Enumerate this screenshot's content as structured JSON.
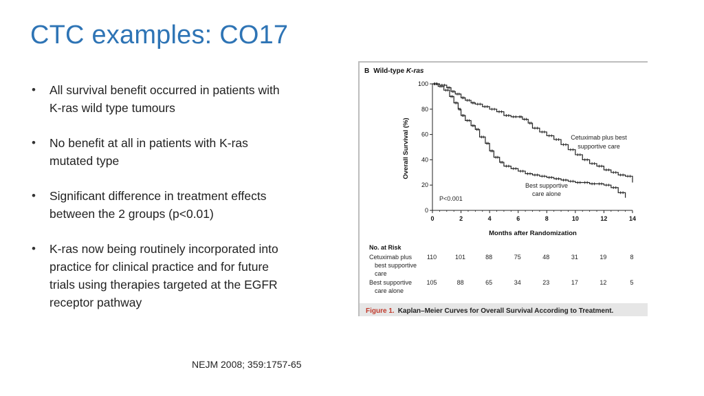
{
  "slide": {
    "title": "CTC examples: CO17",
    "bullets": [
      "All survival benefit occurred in patients with K-ras wild type tumours",
      "No benefit at all in patients with K-ras mutated type",
      "Significant difference in treatment effects between the 2 groups (p<0.01)",
      "K-ras now being routinely incorporated into practice for clinical practice and for future trials using therapies targeted at the EGFR receptor pathway"
    ],
    "citation": "NEJM 2008; 359:1757-65"
  },
  "figure": {
    "panel_letter": "B",
    "panel_title_prefix": "Wild-type ",
    "panel_title_italic": "K-ras",
    "caption_label": "Figure 1.",
    "caption_text": "Kaplan–Meier Curves for Overall Survival According to Treatment.",
    "pvalue": "P<0.001",
    "colors": {
      "curve": "#222222",
      "caption_label": "#c0392b",
      "caption_band": "#e6e6e6"
    },
    "risk_table": {
      "header": "No. at Risk",
      "rows": [
        {
          "label_lines": [
            "Cetuximab plus",
            "best supportive",
            "care"
          ],
          "values": [
            "110",
            "101",
            "88",
            "75",
            "48",
            "31",
            "19",
            "8"
          ]
        },
        {
          "label_lines": [
            "Best supportive",
            "care alone"
          ],
          "values": [
            "105",
            "88",
            "65",
            "34",
            "23",
            "17",
            "12",
            "5"
          ]
        }
      ]
    }
  },
  "chart_data": {
    "type": "line",
    "xlabel": "Months after Randomization",
    "ylabel": "Overall Survival (%)",
    "xlim": [
      0,
      14
    ],
    "ylim": [
      0,
      100
    ],
    "xticks": [
      "0",
      "2",
      "4",
      "6",
      "8",
      "10",
      "12",
      "14"
    ],
    "yticks": [
      "0",
      "20",
      "40",
      "60",
      "80",
      "100"
    ],
    "series": [
      {
        "name": "Cetuximab plus best supportive care",
        "label_lines": [
          "Cetuximab plus best",
          "supportive care"
        ],
        "x": [
          0,
          0.5,
          1.0,
          1.3,
          1.6,
          2.0,
          2.3,
          2.7,
          3.0,
          3.5,
          4.0,
          4.5,
          5.0,
          5.5,
          6.0,
          6.3,
          6.7,
          7.0,
          7.5,
          8.0,
          8.5,
          9.0,
          9.5,
          10.0,
          10.5,
          11.0,
          11.5,
          12.0,
          12.5,
          13.0,
          13.5,
          14.0
        ],
        "y": [
          100,
          99,
          97,
          94,
          92,
          89,
          87,
          85,
          84,
          82,
          80,
          78,
          75,
          74,
          74,
          72,
          69,
          65,
          62,
          59,
          56,
          52,
          48,
          44,
          40,
          37,
          35,
          32,
          30,
          28,
          27,
          22
        ]
      },
      {
        "name": "Best supportive care alone",
        "label_lines": [
          "Best supportive",
          "care alone"
        ],
        "x": [
          0,
          0.4,
          0.8,
          1.2,
          1.5,
          1.8,
          2.0,
          2.3,
          2.7,
          3.0,
          3.3,
          3.7,
          4.0,
          4.3,
          4.7,
          5.0,
          5.5,
          6.0,
          6.5,
          7.0,
          7.5,
          8.0,
          8.5,
          9.0,
          9.5,
          10.0,
          10.5,
          11.0,
          11.5,
          12.0,
          12.5,
          13.0,
          13.5
        ],
        "y": [
          100,
          98,
          95,
          90,
          85,
          80,
          75,
          71,
          67,
          64,
          58,
          53,
          47,
          42,
          38,
          35,
          33,
          31,
          29,
          28,
          27,
          26,
          25,
          24,
          23,
          22,
          22,
          21,
          21,
          20,
          18,
          14,
          10
        ]
      }
    ],
    "annotations": [
      "P<0.001"
    ]
  }
}
